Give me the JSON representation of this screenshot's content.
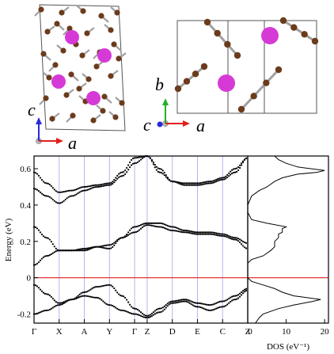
{
  "structures": {
    "left_axes": {
      "vertical": "c",
      "horizontal": "a"
    },
    "right_axes": {
      "vertical": "b",
      "depth": "c",
      "horizontal": "a"
    }
  },
  "colors": {
    "bands": "#000000",
    "fermi_line": "#e0201c",
    "high_symmetry_lines": "#b4b4f0",
    "frame": "#000000",
    "atom_large": "#d63ad6",
    "atom_small": "#6b3b1c",
    "bond": "#a0a0a0",
    "axis_red": "#e0201c",
    "axis_green": "#22b022",
    "axis_blue": "#2a2ad8"
  },
  "chart_data": [
    {
      "type": "line",
      "title": "",
      "xlabel": "",
      "ylabel": "Energy (eV)",
      "ylim": [
        -0.25,
        0.67
      ],
      "yticks": [
        -0.2,
        0,
        0.2,
        0.4,
        0.6
      ],
      "ytick_labels": [
        "-0.2",
        "0",
        "0.2",
        "0.4",
        "0.6"
      ],
      "kpath": [
        "Γ",
        "X",
        "A",
        "Y",
        "Γ",
        "Z",
        "D",
        "E",
        "C",
        "Z"
      ],
      "kpath_positions": [
        0,
        1,
        2,
        3,
        4,
        4.5,
        5.5,
        6.5,
        7.5,
        8.5
      ],
      "xlim": [
        0,
        8.5
      ],
      "fermi_level": 0,
      "grid": false,
      "series": [
        {
          "x": [
            0,
            0.5,
            1,
            1.5,
            2,
            2.5,
            3,
            3.5,
            4,
            4.5,
            5,
            5.5,
            6,
            6.5,
            7,
            7.5,
            8,
            8.5
          ],
          "values": [
            -0.2,
            -0.18,
            -0.15,
            -0.12,
            -0.08,
            -0.05,
            -0.04,
            -0.1,
            -0.17,
            -0.21,
            -0.17,
            -0.13,
            -0.12,
            -0.14,
            -0.15,
            -0.13,
            -0.1,
            -0.06
          ]
        },
        {
          "x": [
            0,
            0.5,
            1,
            1.5,
            2,
            2.5,
            3,
            3.5,
            4,
            4.5,
            5,
            5.5,
            6,
            6.5,
            7,
            7.5,
            8,
            8.5
          ],
          "values": [
            -0.04,
            -0.09,
            -0.14,
            -0.12,
            -0.1,
            -0.11,
            -0.15,
            -0.18,
            -0.2,
            -0.22,
            -0.19,
            -0.14,
            -0.13,
            -0.16,
            -0.18,
            -0.16,
            -0.12,
            -0.07
          ]
        },
        {
          "x": [
            0,
            0.5,
            1,
            1.5,
            2,
            2.5,
            3,
            3.5,
            4,
            4.5,
            5,
            5.5,
            6,
            6.5,
            7,
            7.5,
            8,
            8.5
          ],
          "values": [
            0.28,
            0.22,
            0.15,
            0.15,
            0.16,
            0.17,
            0.16,
            0.22,
            0.28,
            0.3,
            0.3,
            0.28,
            0.26,
            0.25,
            0.25,
            0.24,
            0.22,
            0.19
          ]
        },
        {
          "x": [
            0,
            0.5,
            1,
            1.5,
            2,
            2.5,
            3,
            3.5,
            4,
            4.5,
            5,
            5.5,
            6,
            6.5,
            7,
            7.5,
            8,
            8.5
          ],
          "values": [
            0.07,
            0.12,
            0.15,
            0.15,
            0.15,
            0.17,
            0.18,
            0.22,
            0.25,
            0.29,
            0.28,
            0.26,
            0.25,
            0.24,
            0.24,
            0.23,
            0.21,
            0.16
          ]
        },
        {
          "x": [
            0,
            0.5,
            1,
            1.5,
            2,
            2.5,
            3,
            3.5,
            4,
            4.5,
            5,
            5.5,
            6,
            6.5,
            7,
            7.5,
            8,
            8.5
          ],
          "values": [
            0.58,
            0.52,
            0.47,
            0.48,
            0.5,
            0.51,
            0.52,
            0.58,
            0.66,
            0.67,
            0.58,
            0.53,
            0.52,
            0.52,
            0.53,
            0.55,
            0.6,
            0.66
          ]
        },
        {
          "x": [
            0,
            0.5,
            1,
            1.5,
            2,
            2.5,
            3,
            3.5,
            4,
            4.5,
            5,
            5.5,
            6,
            6.5,
            7,
            7.5,
            8,
            8.5
          ],
          "values": [
            0.49,
            0.45,
            0.41,
            0.45,
            0.48,
            0.5,
            0.51,
            0.56,
            0.63,
            0.67,
            0.6,
            0.53,
            0.51,
            0.51,
            0.52,
            0.54,
            0.58,
            0.66
          ]
        }
      ]
    },
    {
      "type": "line",
      "title": "",
      "xlabel": "DOS (eV⁻¹)",
      "ylabel": "",
      "xlim": [
        0,
        21
      ],
      "ylim": [
        -0.25,
        0.67
      ],
      "xticks": [
        0,
        10,
        20
      ],
      "xtick_labels": [
        "0",
        "10",
        "20"
      ],
      "grid": false,
      "energy": [
        -0.25,
        -0.22,
        -0.2,
        -0.17,
        -0.15,
        -0.13,
        -0.12,
        -0.1,
        -0.08,
        -0.06,
        -0.04,
        -0.02,
        0,
        0.02,
        0.05,
        0.08,
        0.1,
        0.12,
        0.15,
        0.17,
        0.2,
        0.22,
        0.24,
        0.25,
        0.27,
        0.28,
        0.3,
        0.32,
        0.36,
        0.4,
        0.45,
        0.48,
        0.5,
        0.53,
        0.55,
        0.57,
        0.58,
        0.59,
        0.61,
        0.63,
        0.65,
        0.67
      ],
      "dos": [
        2,
        3,
        4,
        8,
        12,
        17,
        19,
        12,
        9,
        7,
        4,
        1,
        0,
        0,
        0,
        0,
        1,
        4,
        6,
        7,
        7,
        8,
        8,
        9,
        9,
        10,
        5,
        1,
        0,
        0,
        1,
        3,
        5,
        7,
        9,
        13,
        18,
        20,
        13,
        10,
        8,
        7
      ]
    }
  ]
}
